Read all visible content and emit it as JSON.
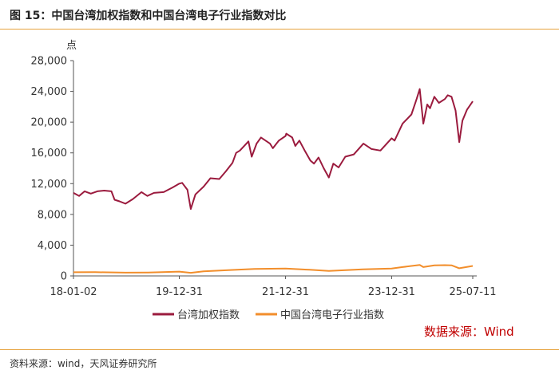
{
  "page": {
    "title": "图 15：中国台湾加权指数和中国台湾电子行业指数对比",
    "source_note": "资料来源：wind，天风证券研究所",
    "watermark": "数据来源：Wind"
  },
  "chart_data": {
    "type": "line",
    "ylabel": "点",
    "ylim": [
      0,
      28000
    ],
    "yticks": [
      "28,000",
      "24,000",
      "20,000",
      "16,000",
      "12,000",
      "8,000",
      "4,000",
      "0"
    ],
    "xlim": [
      "2018-01-02",
      "2025-07-11"
    ],
    "xticks": [
      {
        "date": "2018-01-02",
        "label": "18-01-02"
      },
      {
        "date": "2019-12-31",
        "label": "19-12-31"
      },
      {
        "date": "2021-12-31",
        "label": "21-12-31"
      },
      {
        "date": "2023-12-31",
        "label": "23-12-31"
      },
      {
        "date": "2025-07-11",
        "label": "25-07-11"
      }
    ],
    "legend_position": "bottom",
    "grid": false,
    "series": [
      {
        "name": "台湾加权指数",
        "color": "#9b1b3e",
        "points": [
          [
            "2018-01-02",
            10800
          ],
          [
            "2018-02-10",
            10400
          ],
          [
            "2018-03-20",
            11000
          ],
          [
            "2018-05-01",
            10700
          ],
          [
            "2018-06-15",
            11000
          ],
          [
            "2018-08-01",
            11100
          ],
          [
            "2018-09-20",
            11000
          ],
          [
            "2018-10-12",
            9900
          ],
          [
            "2018-11-15",
            9700
          ],
          [
            "2018-12-26",
            9400
          ],
          [
            "2019-02-15",
            10000
          ],
          [
            "2019-04-15",
            10900
          ],
          [
            "2019-05-25",
            10400
          ],
          [
            "2019-07-10",
            10800
          ],
          [
            "2019-09-15",
            10900
          ],
          [
            "2019-11-15",
            11500
          ],
          [
            "2019-12-31",
            12000
          ],
          [
            "2020-01-20",
            12100
          ],
          [
            "2020-02-25",
            11200
          ],
          [
            "2020-03-19",
            8700
          ],
          [
            "2020-04-20",
            10600
          ],
          [
            "2020-06-15",
            11600
          ],
          [
            "2020-08-01",
            12700
          ],
          [
            "2020-10-01",
            12600
          ],
          [
            "2020-11-15",
            13600
          ],
          [
            "2020-12-31",
            14700
          ],
          [
            "2021-01-25",
            16000
          ],
          [
            "2021-02-20",
            16300
          ],
          [
            "2021-04-20",
            17500
          ],
          [
            "2021-05-12",
            15500
          ],
          [
            "2021-06-15",
            17200
          ],
          [
            "2021-07-15",
            18000
          ],
          [
            "2021-09-15",
            17200
          ],
          [
            "2021-10-05",
            16600
          ],
          [
            "2021-11-15",
            17600
          ],
          [
            "2021-12-31",
            18200
          ],
          [
            "2022-01-05",
            18500
          ],
          [
            "2022-02-15",
            18000
          ],
          [
            "2022-03-08",
            16900
          ],
          [
            "2022-04-05",
            17600
          ],
          [
            "2022-05-15",
            16200
          ],
          [
            "2022-06-20",
            15000
          ],
          [
            "2022-07-15",
            14600
          ],
          [
            "2022-08-15",
            15400
          ],
          [
            "2022-09-20",
            14000
          ],
          [
            "2022-10-25",
            12800
          ],
          [
            "2022-11-25",
            14600
          ],
          [
            "2022-12-31",
            14100
          ],
          [
            "2023-02-15",
            15500
          ],
          [
            "2023-04-15",
            15800
          ],
          [
            "2023-06-20",
            17200
          ],
          [
            "2023-08-15",
            16500
          ],
          [
            "2023-10-15",
            16300
          ],
          [
            "2023-12-31",
            17900
          ],
          [
            "2024-01-20",
            17600
          ],
          [
            "2024-03-15",
            19800
          ],
          [
            "2024-05-15",
            21000
          ],
          [
            "2024-06-20",
            23000
          ],
          [
            "2024-07-11",
            24300
          ],
          [
            "2024-08-05",
            19800
          ],
          [
            "2024-09-01",
            22300
          ],
          [
            "2024-09-20",
            21800
          ],
          [
            "2024-10-20",
            23300
          ],
          [
            "2024-11-20",
            22500
          ],
          [
            "2024-12-31",
            23000
          ],
          [
            "2025-01-20",
            23500
          ],
          [
            "2025-02-15",
            23300
          ],
          [
            "2025-03-15",
            21500
          ],
          [
            "2025-04-09",
            17400
          ],
          [
            "2025-05-01",
            20200
          ],
          [
            "2025-06-01",
            21600
          ],
          [
            "2025-07-11",
            22700
          ]
        ]
      },
      {
        "name": "中国台湾电子行业指数",
        "color": "#f28e2b",
        "points": [
          [
            "2018-01-02",
            480
          ],
          [
            "2018-06-01",
            490
          ],
          [
            "2018-12-26",
            420
          ],
          [
            "2019-06-01",
            450
          ],
          [
            "2019-12-31",
            560
          ],
          [
            "2020-03-19",
            400
          ],
          [
            "2020-06-15",
            600
          ],
          [
            "2020-12-31",
            780
          ],
          [
            "2021-06-01",
            900
          ],
          [
            "2021-12-31",
            960
          ],
          [
            "2022-06-15",
            800
          ],
          [
            "2022-10-25",
            640
          ],
          [
            "2023-06-15",
            850
          ],
          [
            "2023-12-31",
            950
          ],
          [
            "2024-03-15",
            1150
          ],
          [
            "2024-07-11",
            1420
          ],
          [
            "2024-08-05",
            1150
          ],
          [
            "2024-10-20",
            1380
          ],
          [
            "2024-12-31",
            1400
          ],
          [
            "2025-02-15",
            1380
          ],
          [
            "2025-04-09",
            1000
          ],
          [
            "2025-07-11",
            1300
          ]
        ]
      }
    ]
  }
}
